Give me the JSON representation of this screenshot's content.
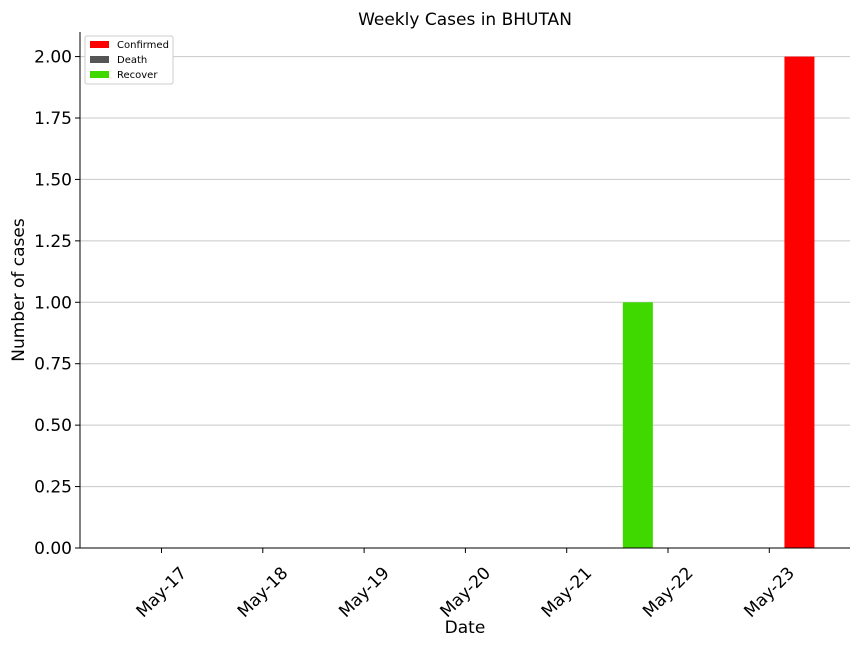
{
  "chart_data": {
    "type": "bar",
    "title": "Weekly Cases in BHUTAN",
    "xlabel": "Date",
    "ylabel": "Number of cases",
    "categories": [
      "May-17",
      "May-18",
      "May-19",
      "May-20",
      "May-21",
      "May-22",
      "May-23"
    ],
    "series": [
      {
        "name": "Confirmed",
        "color": "#ff0000",
        "values": [
          0,
          0,
          0,
          0,
          0,
          0,
          2
        ]
      },
      {
        "name": "Death",
        "color": "#555555",
        "values": [
          0,
          0,
          0,
          0,
          0,
          0,
          0
        ]
      },
      {
        "name": "Recover",
        "color": "#3fd900",
        "values": [
          0,
          0,
          0,
          0,
          0,
          1,
          0
        ]
      }
    ],
    "ylim": [
      0,
      2.1
    ],
    "yticks": [
      "0.00",
      "0.25",
      "0.50",
      "0.75",
      "1.00",
      "1.25",
      "1.50",
      "1.75",
      "2.00"
    ],
    "grid": "horizontal",
    "legend_position": "top-left"
  }
}
